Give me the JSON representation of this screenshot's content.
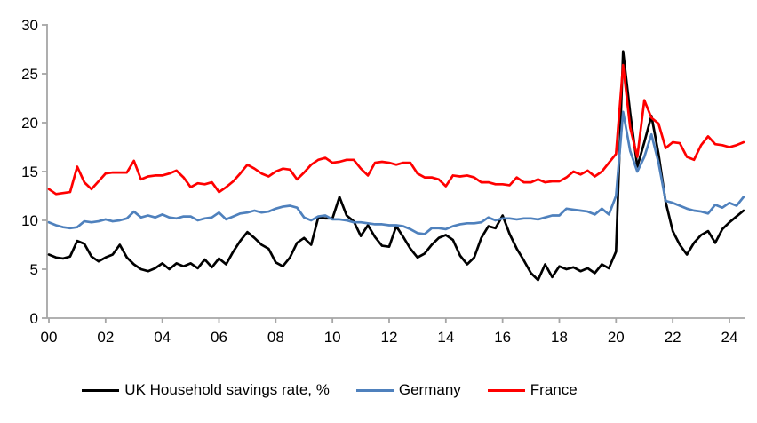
{
  "chart_data": {
    "type": "line",
    "title": "",
    "x_start_year": 2000,
    "x_step_years": 0.25,
    "x_tick_labels": [
      "00",
      "02",
      "04",
      "06",
      "08",
      "10",
      "12",
      "14",
      "16",
      "18",
      "20",
      "22",
      "24"
    ],
    "y_ticks": [
      0,
      5,
      10,
      15,
      20,
      25,
      30
    ],
    "ylim": [
      0,
      30
    ],
    "grid": false,
    "legend_position": "bottom",
    "axis_color": "#a6a6a6",
    "series": [
      {
        "name": "UK Household savings rate, %",
        "color": "#000000",
        "values": [
          6.5,
          6.2,
          6.1,
          6.3,
          7.9,
          7.6,
          6.3,
          5.8,
          6.2,
          6.5,
          7.5,
          6.2,
          5.5,
          5.0,
          4.8,
          5.1,
          5.6,
          5.0,
          5.6,
          5.3,
          5.6,
          5.1,
          6.0,
          5.2,
          6.1,
          5.5,
          6.8,
          7.9,
          8.8,
          8.2,
          7.5,
          7.1,
          5.7,
          5.3,
          6.2,
          7.7,
          8.2,
          7.5,
          10.3,
          10.2,
          10.2,
          12.4,
          10.5,
          9.9,
          8.4,
          9.5,
          8.3,
          7.4,
          7.3,
          9.4,
          8.3,
          7.1,
          6.2,
          6.6,
          7.5,
          8.2,
          8.5,
          8.0,
          6.4,
          5.5,
          6.2,
          8.2,
          9.4,
          9.2,
          10.5,
          8.6,
          7.1,
          5.9,
          4.6,
          3.9,
          5.5,
          4.2,
          5.3,
          5.0,
          5.2,
          4.8,
          5.1,
          4.6,
          5.5,
          5.1,
          6.8,
          27.3,
          21.0,
          15.5,
          18.0,
          20.7,
          16.8,
          11.9,
          8.9,
          7.5,
          6.5,
          7.7,
          8.5,
          8.9,
          7.7,
          9.1,
          9.8,
          10.4,
          11.0
        ]
      },
      {
        "name": "Germany",
        "color": "#4f81bd",
        "values": [
          9.8,
          9.5,
          9.3,
          9.2,
          9.3,
          9.9,
          9.8,
          9.9,
          10.1,
          9.9,
          10.0,
          10.2,
          10.9,
          10.3,
          10.5,
          10.3,
          10.6,
          10.3,
          10.2,
          10.4,
          10.4,
          10.0,
          10.2,
          10.3,
          10.8,
          10.1,
          10.4,
          10.7,
          10.8,
          11.0,
          10.8,
          10.9,
          11.2,
          11.4,
          11.5,
          11.3,
          10.3,
          10.0,
          10.4,
          10.5,
          10.1,
          10.1,
          10.0,
          9.8,
          9.8,
          9.7,
          9.6,
          9.6,
          9.5,
          9.5,
          9.4,
          9.1,
          8.7,
          8.6,
          9.2,
          9.2,
          9.1,
          9.4,
          9.6,
          9.7,
          9.7,
          9.8,
          10.3,
          10.0,
          10.2,
          10.2,
          10.1,
          10.2,
          10.2,
          10.1,
          10.3,
          10.5,
          10.5,
          11.2,
          11.1,
          11.0,
          10.9,
          10.6,
          11.2,
          10.6,
          12.5,
          21.1,
          17.1,
          15.0,
          16.5,
          18.8,
          15.9,
          12.0,
          11.8,
          11.5,
          11.2,
          11.0,
          10.9,
          10.7,
          11.6,
          11.3,
          11.8,
          11.5,
          12.4
        ]
      },
      {
        "name": "France",
        "color": "#ff0000",
        "values": [
          13.2,
          12.7,
          12.8,
          12.9,
          15.5,
          13.9,
          13.2,
          14.0,
          14.8,
          14.9,
          14.9,
          14.9,
          16.1,
          14.2,
          14.5,
          14.6,
          14.6,
          14.8,
          15.1,
          14.4,
          13.4,
          13.8,
          13.7,
          13.9,
          12.9,
          13.4,
          14.0,
          14.8,
          15.7,
          15.3,
          14.8,
          14.5,
          15.0,
          15.3,
          15.2,
          14.2,
          14.9,
          15.7,
          16.2,
          16.4,
          15.9,
          16.0,
          16.2,
          16.2,
          15.3,
          14.6,
          15.9,
          16.0,
          15.9,
          15.7,
          15.9,
          15.9,
          14.8,
          14.4,
          14.4,
          14.2,
          13.5,
          14.6,
          14.5,
          14.6,
          14.4,
          13.9,
          13.9,
          13.7,
          13.7,
          13.6,
          14.4,
          13.9,
          13.9,
          14.2,
          13.9,
          14.0,
          14.0,
          14.4,
          15.0,
          14.7,
          15.1,
          14.5,
          15.0,
          15.9,
          16.8,
          25.9,
          19.5,
          16.5,
          22.3,
          20.5,
          19.9,
          17.4,
          18.0,
          17.9,
          16.5,
          16.2,
          17.7,
          18.6,
          17.8,
          17.7,
          17.5,
          17.7,
          18.0
        ]
      }
    ]
  }
}
